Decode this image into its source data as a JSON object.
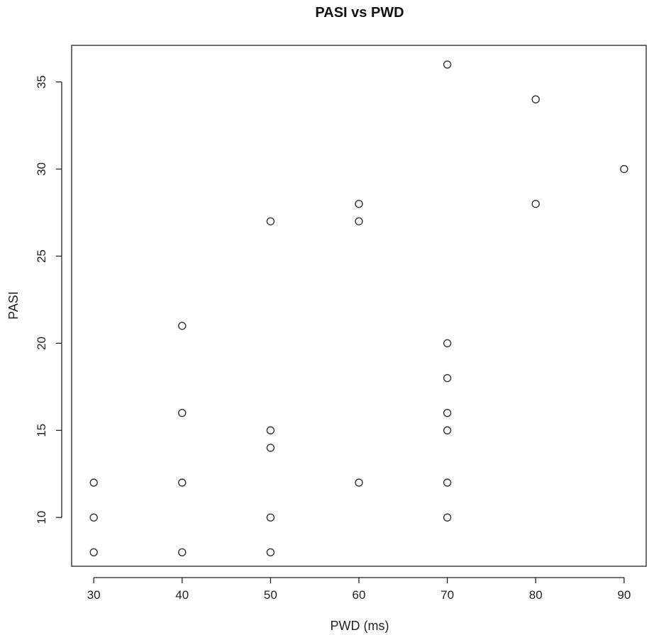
{
  "chart_data": {
    "type": "scatter",
    "title": "PASI vs PWD",
    "xlabel": "PWD (ms)",
    "ylabel": "PASI",
    "xlim": [
      27.5,
      92.5
    ],
    "ylim": [
      7.2,
      37.1
    ],
    "xticks": [
      30,
      40,
      50,
      60,
      70,
      80,
      90
    ],
    "yticks": [
      10,
      15,
      20,
      25,
      30,
      35
    ],
    "grid": false,
    "legend": "none",
    "marker": "open-circle",
    "points": [
      {
        "x": 30,
        "y": 12
      },
      {
        "x": 30,
        "y": 10
      },
      {
        "x": 30,
        "y": 8
      },
      {
        "x": 40,
        "y": 21
      },
      {
        "x": 40,
        "y": 16
      },
      {
        "x": 40,
        "y": 12
      },
      {
        "x": 40,
        "y": 8
      },
      {
        "x": 50,
        "y": 27
      },
      {
        "x": 50,
        "y": 15
      },
      {
        "x": 50,
        "y": 14
      },
      {
        "x": 50,
        "y": 10
      },
      {
        "x": 50,
        "y": 8
      },
      {
        "x": 60,
        "y": 28
      },
      {
        "x": 60,
        "y": 27
      },
      {
        "x": 60,
        "y": 12
      },
      {
        "x": 70,
        "y": 36
      },
      {
        "x": 70,
        "y": 20
      },
      {
        "x": 70,
        "y": 18
      },
      {
        "x": 70,
        "y": 16
      },
      {
        "x": 70,
        "y": 15
      },
      {
        "x": 70,
        "y": 12
      },
      {
        "x": 70,
        "y": 10
      },
      {
        "x": 80,
        "y": 34
      },
      {
        "x": 80,
        "y": 28
      },
      {
        "x": 90,
        "y": 30
      }
    ]
  }
}
